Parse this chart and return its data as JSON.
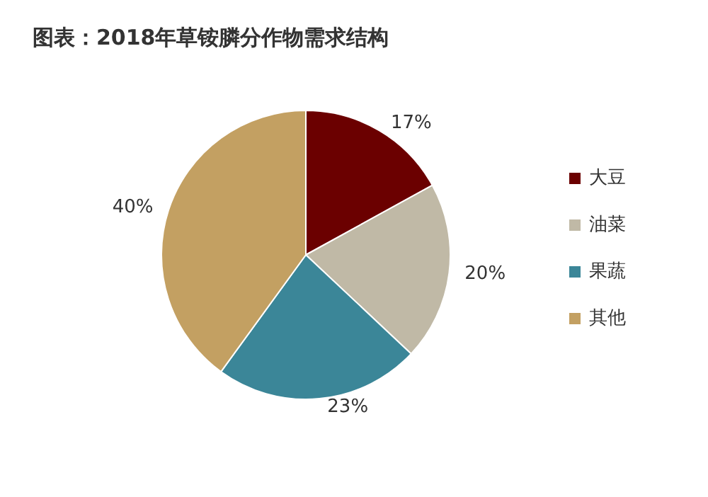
{
  "chart_data": {
    "type": "pie",
    "title": "图表：2018年草铵膦分作物需求结构",
    "categories": [
      "大豆",
      "油菜",
      "果蔬",
      "其他"
    ],
    "values": [
      17,
      20,
      23,
      40
    ],
    "value_labels": [
      "17%",
      "20%",
      "23%",
      "40%"
    ],
    "colors": [
      "#6b0000",
      "#c0b9a6",
      "#3b8698",
      "#c3a062"
    ],
    "legend": "right"
  }
}
